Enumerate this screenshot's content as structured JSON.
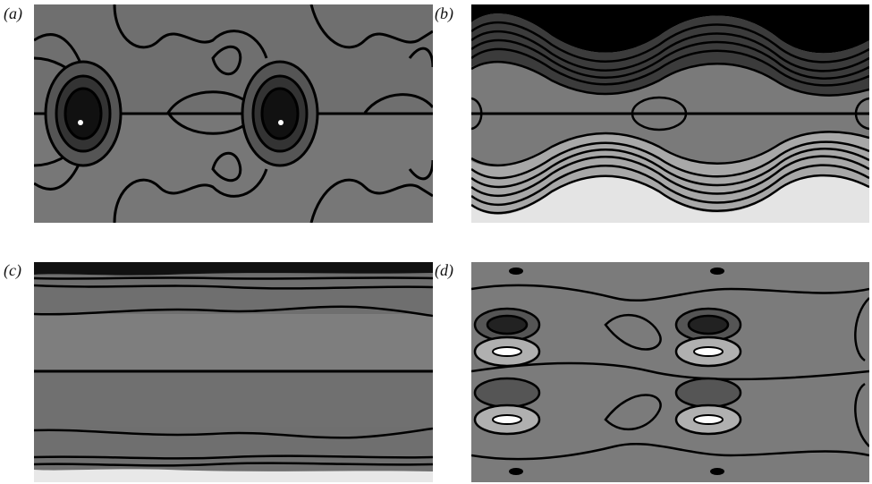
{
  "panels": [
    {
      "id": "a",
      "label": "(a)"
    },
    {
      "id": "b",
      "label": "(b)"
    },
    {
      "id": "c",
      "label": "(c)"
    },
    {
      "id": "d",
      "label": "(d)"
    }
  ],
  "colors": {
    "background": "#ffffff",
    "contour_line": "#000000",
    "shade_dark": "#3f3f3f",
    "shade_mid": "#6e6e6e",
    "shade_light": "#9a9a9a",
    "shade_lightest": "#e4e4e4"
  }
}
